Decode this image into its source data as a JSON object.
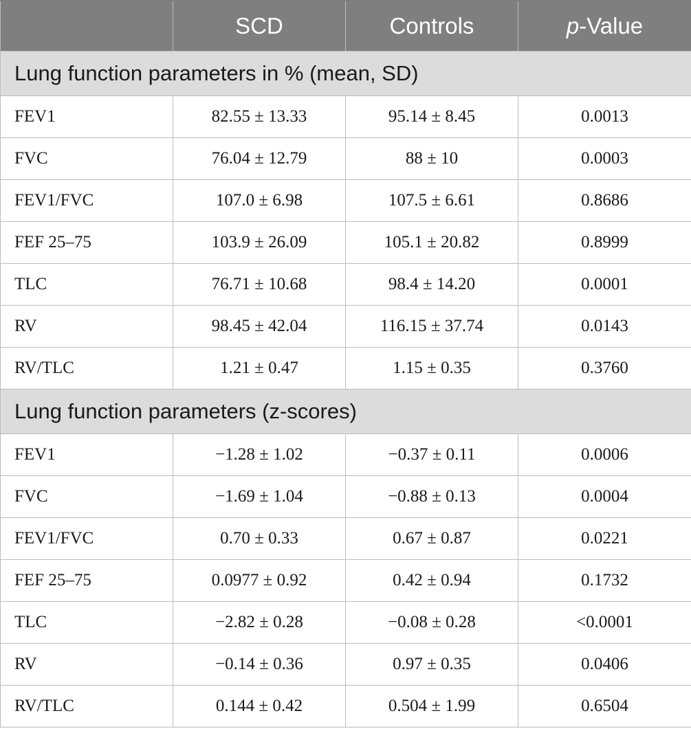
{
  "header": {
    "col1": "",
    "col2": "SCD",
    "col3": "Controls",
    "col4_italic": "p",
    "col4_rest": "-Value"
  },
  "sections": [
    {
      "title": "Lung function parameters in % (mean, SD)",
      "rows": [
        {
          "param": "FEV1",
          "scd": "82.55 ± 13.33",
          "controls": "95.14 ± 8.45",
          "p": "0.0013"
        },
        {
          "param": "FVC",
          "scd": "76.04 ± 12.79",
          "controls": "88 ± 10",
          "p": "0.0003"
        },
        {
          "param": "FEV1/FVC",
          "scd": "107.0 ± 6.98",
          "controls": "107.5 ± 6.61",
          "p": "0.8686"
        },
        {
          "param": "FEF 25–75",
          "scd": "103.9 ± 26.09",
          "controls": "105.1 ± 20.82",
          "p": "0.8999"
        },
        {
          "param": "TLC",
          "scd": "76.71 ± 10.68",
          "controls": "98.4 ± 14.20",
          "p": "0.0001"
        },
        {
          "param": "RV",
          "scd": "98.45 ± 42.04",
          "controls": "116.15 ± 37.74",
          "p": "0.0143"
        },
        {
          "param": "RV/TLC",
          "scd": "1.21 ± 0.47",
          "controls": "1.15 ± 0.35",
          "p": "0.3760"
        }
      ]
    },
    {
      "title": "Lung function parameters (z-scores)",
      "rows": [
        {
          "param": "FEV1",
          "scd": "−1.28 ± 1.02",
          "controls": "−0.37 ± 0.11",
          "p": "0.0006"
        },
        {
          "param": "FVC",
          "scd": "−1.69 ± 1.04",
          "controls": "−0.88 ± 0.13",
          "p": "0.0004"
        },
        {
          "param": "FEV1/FVC",
          "scd": "0.70 ± 0.33",
          "controls": "0.67 ± 0.87",
          "p": "0.0221"
        },
        {
          "param": "FEF 25–75",
          "scd": "0.0977 ± 0.92",
          "controls": "0.42 ± 0.94",
          "p": "0.1732"
        },
        {
          "param": "TLC",
          "scd": "−2.82 ± 0.28",
          "controls": "−0.08 ± 0.28",
          "p": "<0.0001"
        },
        {
          "param": "RV",
          "scd": "−0.14 ± 0.36",
          "controls": "0.97 ± 0.35",
          "p": "0.0406"
        },
        {
          "param": "RV/TLC",
          "scd": "0.144 ± 0.42",
          "controls": "0.504 ± 1.99",
          "p": "0.6504"
        }
      ]
    }
  ]
}
